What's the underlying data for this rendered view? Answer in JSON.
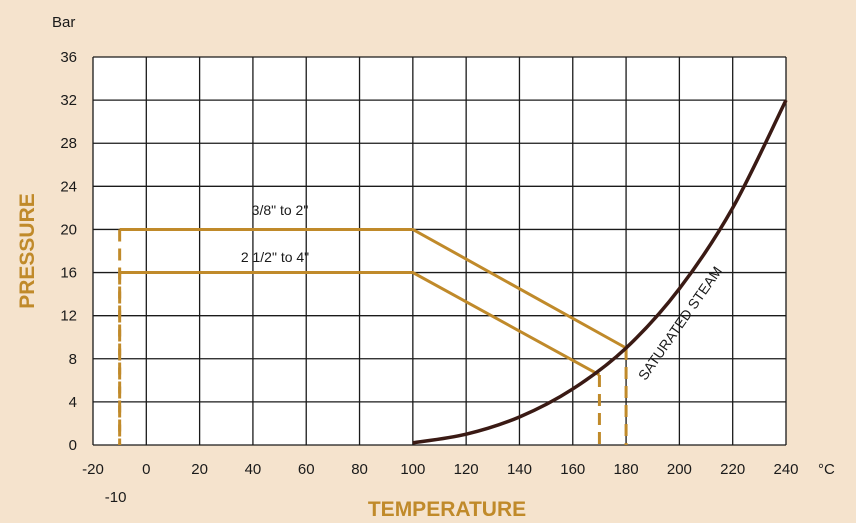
{
  "chart_data": {
    "type": "line",
    "title": "",
    "xlabel": "TEMPERATURE",
    "ylabel": "PRESSURE",
    "x_unit": "°C",
    "y_unit": "Bar",
    "xlim": [
      -20,
      240
    ],
    "ylim": [
      0,
      36
    ],
    "x_ticks": [
      -20,
      0,
      20,
      40,
      60,
      80,
      100,
      120,
      140,
      160,
      180,
      200,
      220,
      240
    ],
    "x_tick_labels": [
      "-20",
      "0",
      "20",
      "40",
      "60",
      "80",
      "100",
      "120",
      "140",
      "160",
      "180",
      "200",
      "220",
      "240"
    ],
    "extra_x_tick": {
      "value": -10,
      "label": "-10"
    },
    "y_ticks": [
      0,
      4,
      8,
      12,
      16,
      20,
      24,
      28,
      32,
      36
    ],
    "y_tick_labels": [
      "0",
      "4",
      "8",
      "12",
      "16",
      "20",
      "24",
      "28",
      "32",
      "36"
    ],
    "grid": true,
    "series": [
      {
        "name": "3/8\" to 2\"",
        "color": "#c08a2a",
        "x": [
          -10,
          100,
          180
        ],
        "y": [
          20,
          20,
          9
        ],
        "drop_lines_x": [
          -10,
          180
        ]
      },
      {
        "name": "2 1/2\" to 4\"",
        "color": "#c08a2a",
        "x": [
          -10,
          100,
          170
        ],
        "y": [
          16,
          16,
          6.5
        ],
        "drop_lines_x": [
          -10,
          170
        ]
      },
      {
        "name": "SATURATED STEAM",
        "color": "#3a1a14",
        "x": [
          100,
          120,
          140,
          160,
          180,
          200,
          220,
          240
        ],
        "y": [
          0.2,
          1.0,
          2.6,
          5.2,
          9.0,
          14.5,
          22.0,
          32.0
        ]
      }
    ]
  }
}
